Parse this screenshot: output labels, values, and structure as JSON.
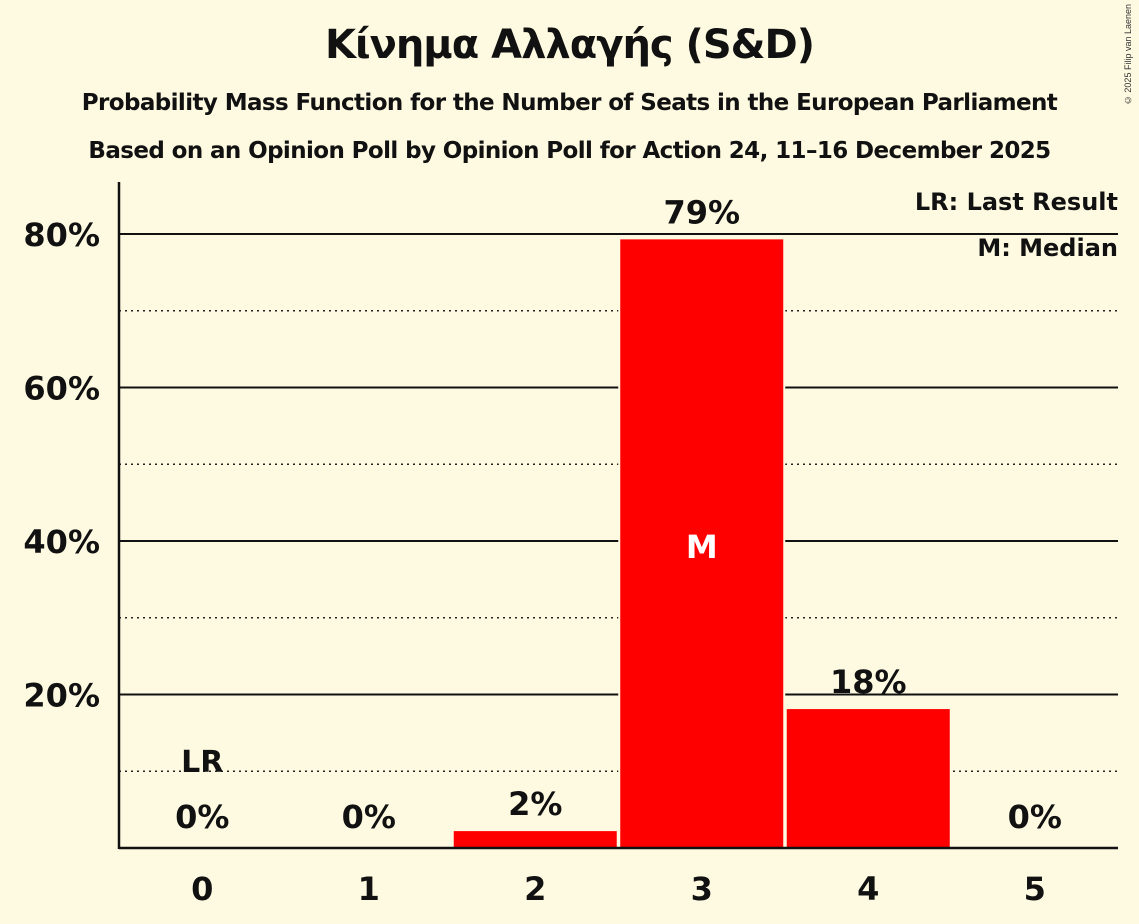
{
  "header": {
    "title": "Κίνημα Αλλαγής (S&D)",
    "subtitle1": "Probability Mass Function for the Number of Seats in the European Parliament",
    "subtitle2": "Based on an Opinion Poll by Opinion Poll for Action 24, 11–16 December 2025",
    "copyright": "© 2025 Filip van Laenen"
  },
  "legend": {
    "lr": "LR: Last Result",
    "m": "M: Median"
  },
  "colors": {
    "bar": "#ff0000",
    "background": "#fefae1",
    "text": "#111111"
  },
  "chart_data": {
    "type": "bar",
    "title": "Κίνημα Αλλαγής (S&D)",
    "subtitle": "Probability Mass Function for the Number of Seats in the European Parliament",
    "categories": [
      "0",
      "1",
      "2",
      "3",
      "4",
      "5"
    ],
    "values": [
      0,
      0,
      2.2,
      79.3,
      18.1,
      0
    ],
    "labels": [
      "0%",
      "0%",
      "2%",
      "79%",
      "18%",
      "0%"
    ],
    "xlabel": "",
    "ylabel": "",
    "ylim": [
      0,
      85
    ],
    "yticks": [
      "20%",
      "40%",
      "60%",
      "80%"
    ],
    "grid": {
      "solid": [
        20,
        40,
        60,
        80
      ],
      "dotted": [
        10,
        30,
        50,
        70
      ]
    },
    "annotations": [
      {
        "category": "0",
        "text": "LR",
        "meaning": "Last Result"
      },
      {
        "category": "3",
        "text": "M",
        "meaning": "Median"
      }
    ],
    "legend_position": "top-right"
  }
}
